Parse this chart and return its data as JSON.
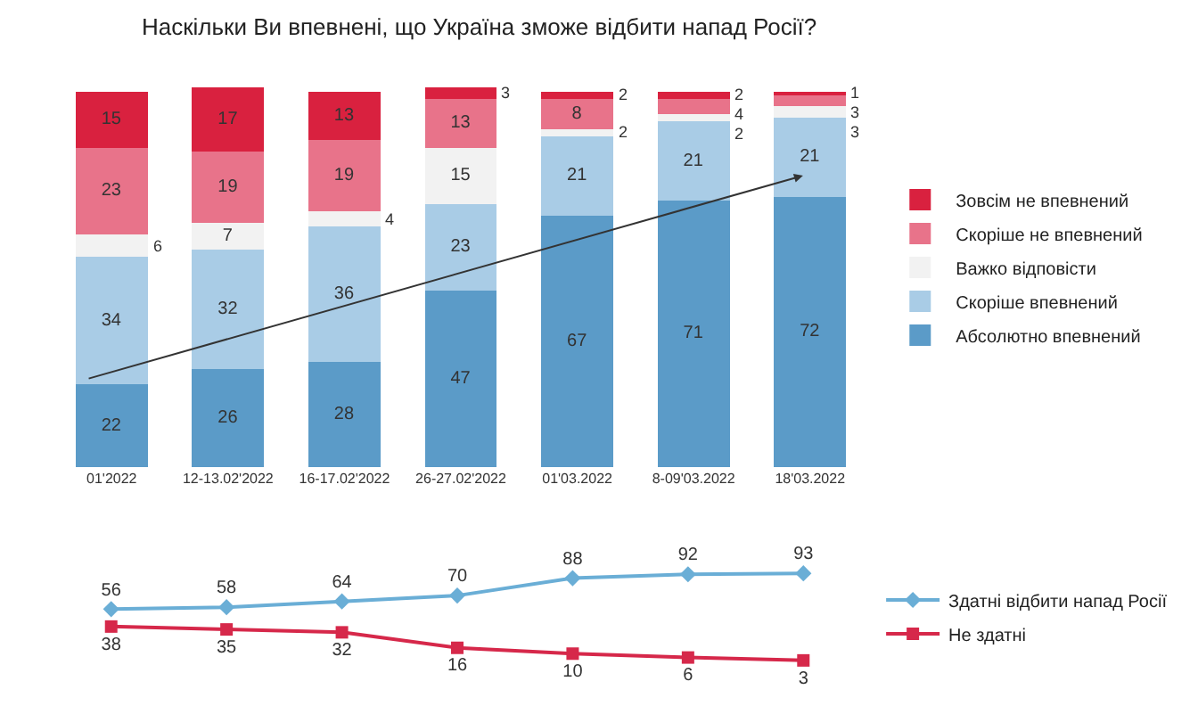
{
  "chart_data": [
    {
      "type": "bar",
      "title": "Наскільки Ви впевнені, що Україна зможе відбити напад Росії?",
      "stacked": true,
      "data_labels": true,
      "legend": "right",
      "grid": false,
      "categories": [
        "01'2022",
        "12-13.02'2022",
        "16-17.02'2022",
        "26-27.02'2022",
        "01'03.2022",
        "8-09'03.2022",
        "18'03.2022"
      ],
      "series": [
        {
          "name": "Абсолютно впевнений",
          "color": "#5b9bc8",
          "values": [
            22,
            26,
            28,
            47,
            67,
            71,
            72
          ]
        },
        {
          "name": "Скоріше впевнений",
          "color": "#a9cce6",
          "values": [
            34,
            32,
            36,
            23,
            21,
            21,
            21
          ]
        },
        {
          "name": "Важко відповісти",
          "color": "#f2f2f2",
          "values": [
            6,
            7,
            4,
            15,
            2,
            2,
            3
          ]
        },
        {
          "name": "Скоріше не впевнений",
          "color": "#e8738a",
          "values": [
            23,
            19,
            19,
            13,
            8,
            4,
            3
          ]
        },
        {
          "name": "Зовсім не впевнений",
          "color": "#d9213f",
          "values": [
            15,
            17,
            13,
            3,
            2,
            2,
            1
          ]
        }
      ]
    },
    {
      "type": "line",
      "data_labels": true,
      "legend": "right",
      "grid": false,
      "categories": [
        null,
        null,
        null,
        null,
        null,
        null,
        null
      ],
      "series": [
        {
          "name": "Здатні відбити напад Росії",
          "color": "#6aaed6",
          "marker": "diamond",
          "values": [
            56,
            58,
            64,
            70,
            88,
            92,
            93
          ]
        },
        {
          "name": "Не здатні",
          "color": "#d6284a",
          "marker": "square",
          "values": [
            38,
            35,
            32,
            16,
            10,
            6,
            3
          ]
        }
      ]
    }
  ]
}
